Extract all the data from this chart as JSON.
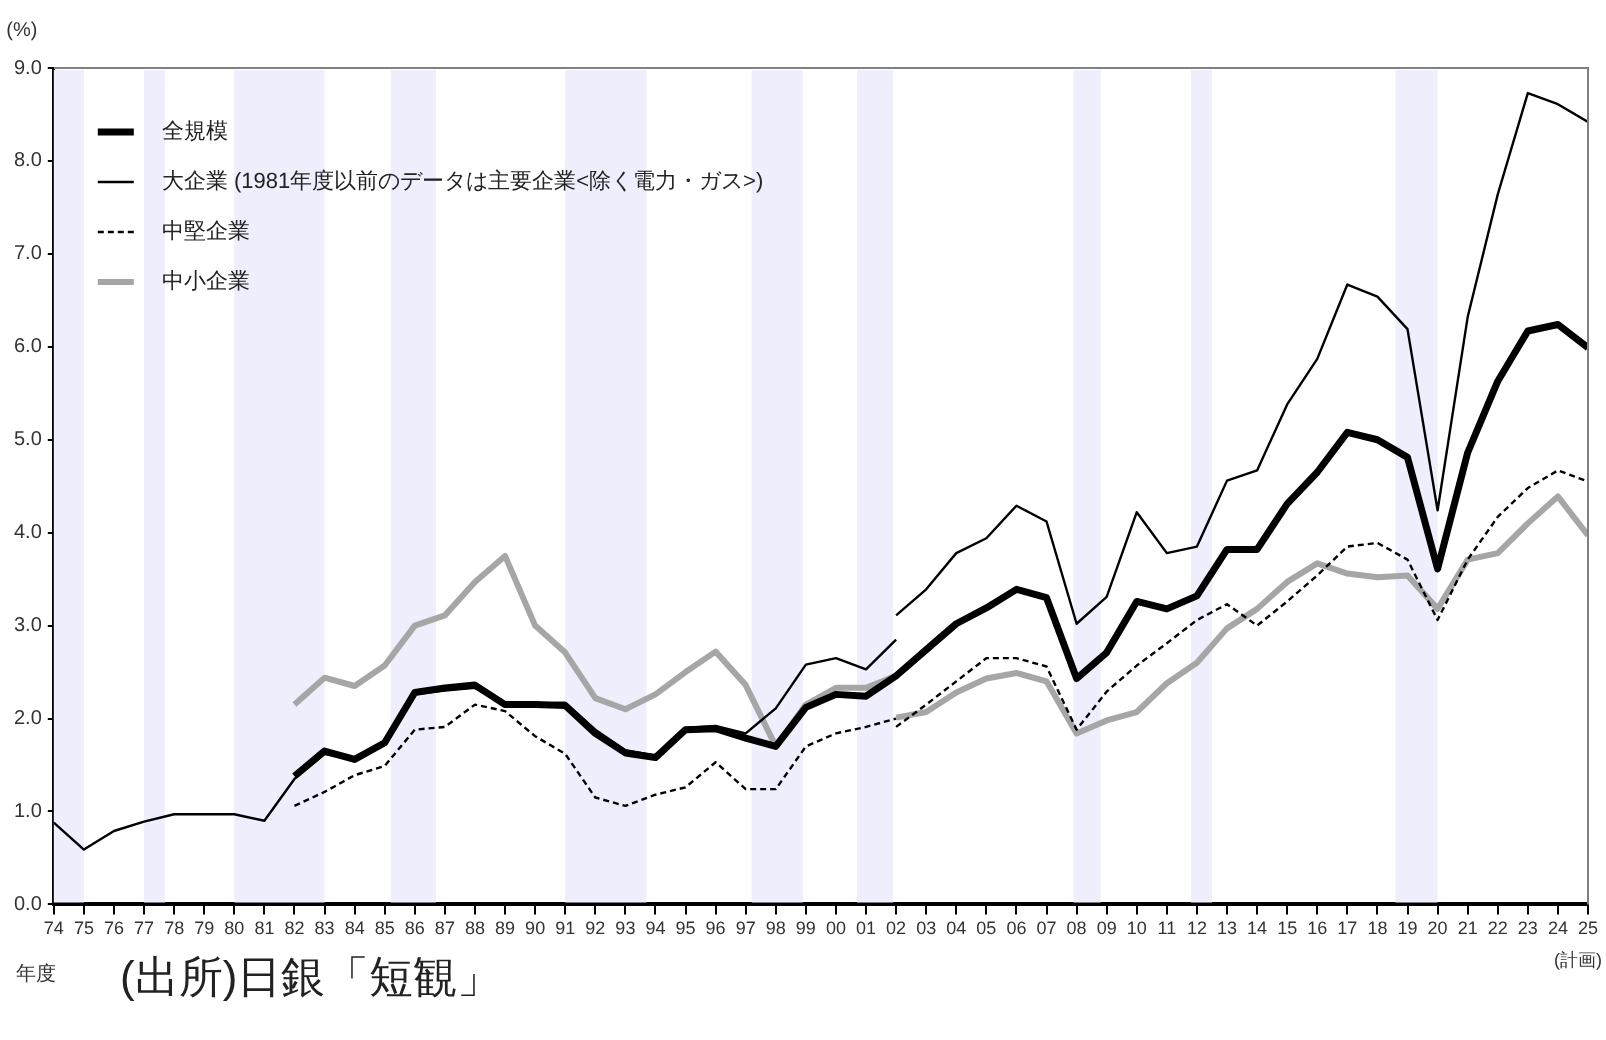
{
  "chart_data": {
    "type": "line",
    "ylabel": "(%)",
    "xlabel": "年度",
    "annotations": [
      "(出所)日銀「短観」",
      "(計画)"
    ],
    "xlim": [
      1974,
      2025
    ],
    "xticks": [
      {
        "value": 1974,
        "label": "74"
      },
      {
        "value": 1975,
        "label": "75"
      },
      {
        "value": 1976,
        "label": "76"
      },
      {
        "value": 1977,
        "label": "77"
      },
      {
        "value": 1978,
        "label": "78"
      },
      {
        "value": 1979,
        "label": "79"
      },
      {
        "value": 1980,
        "label": "80"
      },
      {
        "value": 1981,
        "label": "81"
      },
      {
        "value": 1982,
        "label": "82"
      },
      {
        "value": 1983,
        "label": "83"
      },
      {
        "value": 1984,
        "label": "84"
      },
      {
        "value": 1985,
        "label": "85"
      },
      {
        "value": 1986,
        "label": "86"
      },
      {
        "value": 1987,
        "label": "87"
      },
      {
        "value": 1988,
        "label": "88"
      },
      {
        "value": 1989,
        "label": "89"
      },
      {
        "value": 1990,
        "label": "90"
      },
      {
        "value": 1991,
        "label": "91"
      },
      {
        "value": 1992,
        "label": "92"
      },
      {
        "value": 1993,
        "label": "93"
      },
      {
        "value": 1994,
        "label": "94"
      },
      {
        "value": 1995,
        "label": "95"
      },
      {
        "value": 1996,
        "label": "96"
      },
      {
        "value": 1997,
        "label": "97"
      },
      {
        "value": 1998,
        "label": "98"
      },
      {
        "value": 1999,
        "label": "99"
      },
      {
        "value": 2000,
        "label": "00"
      },
      {
        "value": 2001,
        "label": "01"
      },
      {
        "value": 2002,
        "label": "02"
      },
      {
        "value": 2003,
        "label": "03"
      },
      {
        "value": 2004,
        "label": "04"
      },
      {
        "value": 2005,
        "label": "05"
      },
      {
        "value": 2006,
        "label": "06"
      },
      {
        "value": 2007,
        "label": "07"
      },
      {
        "value": 2008,
        "label": "08"
      },
      {
        "value": 2009,
        "label": "09"
      },
      {
        "value": 2010,
        "label": "10"
      },
      {
        "value": 2011,
        "label": "11"
      },
      {
        "value": 2012,
        "label": "12"
      },
      {
        "value": 2013,
        "label": "13"
      },
      {
        "value": 2014,
        "label": "14"
      },
      {
        "value": 2015,
        "label": "15"
      },
      {
        "value": 2016,
        "label": "16"
      },
      {
        "value": 2017,
        "label": "17"
      },
      {
        "value": 2018,
        "label": "18"
      },
      {
        "value": 2019,
        "label": "19"
      },
      {
        "value": 2020,
        "label": "20"
      },
      {
        "value": 2021,
        "label": "21"
      },
      {
        "value": 2022,
        "label": "22"
      },
      {
        "value": 2023,
        "label": "23"
      },
      {
        "value": 2024,
        "label": "24"
      },
      {
        "value": 2025,
        "label": "25"
      }
    ],
    "ylim": [
      0,
      9
    ],
    "yticks": [
      {
        "value": 0,
        "label": "0.0"
      },
      {
        "value": 1,
        "label": "1.0"
      },
      {
        "value": 2,
        "label": "2.0"
      },
      {
        "value": 3,
        "label": "3.0"
      },
      {
        "value": 4,
        "label": "4.0"
      },
      {
        "value": 5,
        "label": "5.0"
      },
      {
        "value": 6,
        "label": "6.0"
      },
      {
        "value": 7,
        "label": "7.0"
      },
      {
        "value": 8,
        "label": "8.0"
      },
      {
        "value": 9,
        "label": "9.0"
      }
    ],
    "grid": false,
    "legend": "top left",
    "marker": "none",
    "bands": [
      {
        "axis": "x",
        "from": 1974,
        "to": 1975,
        "color": "#eeeefc"
      },
      {
        "axis": "x",
        "from": 1977,
        "to": 1977.7,
        "color": "#eeeefc"
      },
      {
        "axis": "x",
        "from": 1980,
        "to": 1983,
        "color": "#eeeefc"
      },
      {
        "axis": "x",
        "from": 1985.2,
        "to": 1986.7,
        "color": "#eeeefc"
      },
      {
        "axis": "x",
        "from": 1991,
        "to": 1993.7,
        "color": "#eeeefc"
      },
      {
        "axis": "x",
        "from": 1997.2,
        "to": 1998.9,
        "color": "#eeeefc"
      },
      {
        "axis": "x",
        "from": 2000.7,
        "to": 2001.9,
        "color": "#eeeefc"
      },
      {
        "axis": "x",
        "from": 2007.9,
        "to": 2008.8,
        "color": "#eeeefc"
      },
      {
        "axis": "x",
        "from": 2011.8,
        "to": 2012.5,
        "color": "#eeeefc"
      },
      {
        "axis": "x",
        "from": 2018.6,
        "to": 2020,
        "color": "#eeeefc"
      }
    ],
    "series": [
      {
        "name": "全規模",
        "color": "#000000",
        "line_style": "solid",
        "x": [
          1982,
          1983,
          1984,
          1985,
          1986,
          1987,
          1988,
          1989,
          1990,
          1991,
          1992,
          1993,
          1994,
          1995,
          1996,
          1997,
          1998,
          1999,
          2000,
          2001,
          2002,
          2003,
          2004,
          2005,
          2006,
          2007,
          2008,
          2009,
          2010,
          2011,
          2012,
          2013,
          2014,
          2015,
          2016,
          2017,
          2018,
          2019,
          2020,
          2021,
          2022,
          2023,
          2024,
          2025
        ],
        "values": [
          1.38,
          1.65,
          1.56,
          1.74,
          2.28,
          2.33,
          2.36,
          2.15,
          2.15,
          2.14,
          1.84,
          1.63,
          1.58,
          1.88,
          1.89,
          1.79,
          1.7,
          2.12,
          2.26,
          2.24,
          2.46,
          2.74,
          3.02,
          3.19,
          3.39,
          3.3,
          2.43,
          2.71,
          3.26,
          3.18,
          3.32,
          3.82,
          3.82,
          4.31,
          4.65,
          5.08,
          5.0,
          4.81,
          3.61,
          4.86,
          5.63,
          6.17,
          6.24,
          5.99
        ]
      },
      {
        "name": "大企業 (1981年度以前のデータは主要企業<除く電力・ガス>)",
        "color": "#000000",
        "line_style": "solid",
        "x": [
          1974,
          1975,
          1976,
          1977,
          1978,
          1979,
          1980,
          1981,
          1982,
          1983,
          1984,
          1985,
          1986,
          1987,
          1988,
          1989,
          1990,
          1991,
          1992,
          1993,
          1994,
          1995,
          1996,
          1997,
          1998,
          1999,
          2000,
          2001,
          2002
        ],
        "values": [
          0.88,
          0.59,
          0.79,
          0.89,
          0.97,
          0.97,
          0.97,
          0.9,
          1.35,
          1.62,
          1.55,
          1.73,
          2.26,
          2.3,
          2.33,
          2.15,
          2.16,
          2.17,
          1.88,
          1.66,
          1.6,
          1.9,
          1.92,
          1.84,
          2.11,
          2.58,
          2.65,
          2.53,
          2.85
        ]
      },
      {
        "color": "#000000",
        "line_style": "solid",
        "x": [
          2002,
          2003,
          2004,
          2005,
          2006,
          2007,
          2008,
          2009,
          2010,
          2011,
          2012,
          2013,
          2014,
          2015,
          2016,
          2017,
          2018,
          2019,
          2020,
          2021,
          2022,
          2023,
          2024,
          2025
        ],
        "values": [
          3.11,
          3.39,
          3.78,
          3.94,
          4.29,
          4.12,
          3.02,
          3.31,
          4.22,
          3.78,
          3.85,
          4.56,
          4.67,
          5.38,
          5.87,
          6.67,
          6.54,
          6.19,
          4.24,
          6.32,
          7.64,
          8.73,
          8.61,
          8.42
        ]
      },
      {
        "name": "中堅企業",
        "color": "#000000",
        "line_style": "dashed",
        "x": [
          1982,
          1983,
          1984,
          1985,
          1986,
          1987,
          1988,
          1989,
          1990,
          1991,
          1992,
          1993,
          1994,
          1995,
          1996,
          1997,
          1998,
          1999,
          2000,
          2001,
          2002
        ],
        "values": [
          1.06,
          1.21,
          1.39,
          1.49,
          1.88,
          1.91,
          2.15,
          2.08,
          1.81,
          1.62,
          1.15,
          1.06,
          1.18,
          1.26,
          1.53,
          1.24,
          1.24,
          1.7,
          1.84,
          1.91,
          2.0
        ]
      },
      {
        "color": "#000000",
        "line_style": "dashed",
        "x": [
          2002,
          2003,
          2004,
          2005,
          2006,
          2007,
          2008,
          2009,
          2010,
          2011,
          2012,
          2013,
          2014,
          2015,
          2016,
          2017,
          2018,
          2019,
          2020,
          2021,
          2022,
          2023,
          2024,
          2025
        ],
        "values": [
          1.91,
          2.15,
          2.4,
          2.65,
          2.65,
          2.56,
          1.88,
          2.29,
          2.57,
          2.81,
          3.06,
          3.23,
          3.0,
          3.26,
          3.54,
          3.85,
          3.89,
          3.71,
          3.06,
          3.71,
          4.17,
          4.48,
          4.67,
          4.55
        ]
      },
      {
        "name": "中小企業",
        "color": "#a6a6a6",
        "line_style": "solid",
        "x": [
          1982,
          1983,
          1984,
          1985,
          1986,
          1987,
          1988,
          1989,
          1990,
          1991,
          1992,
          1993,
          1994,
          1995,
          1996,
          1997,
          1998,
          1999,
          2000,
          2001,
          2002
        ],
        "values": [
          2.15,
          2.44,
          2.35,
          2.57,
          3.0,
          3.11,
          3.47,
          3.75,
          3.0,
          2.71,
          2.22,
          2.1,
          2.26,
          2.5,
          2.72,
          2.36,
          1.7,
          2.15,
          2.33,
          2.33,
          2.46
        ]
      },
      {
        "color": "#a6a6a6",
        "line_style": "solid",
        "x": [
          2002,
          2003,
          2004,
          2005,
          2006,
          2007,
          2008,
          2009,
          2010,
          2011,
          2012,
          2013,
          2014,
          2015,
          2016,
          2017,
          2018,
          2019,
          2020,
          2021,
          2022,
          2023,
          2024,
          2025
        ],
        "values": [
          2.01,
          2.07,
          2.28,
          2.43,
          2.49,
          2.4,
          1.84,
          1.98,
          2.07,
          2.38,
          2.6,
          2.97,
          3.18,
          3.47,
          3.67,
          3.56,
          3.52,
          3.54,
          3.18,
          3.71,
          3.78,
          4.1,
          4.39,
          3.97
        ]
      }
    ]
  }
}
